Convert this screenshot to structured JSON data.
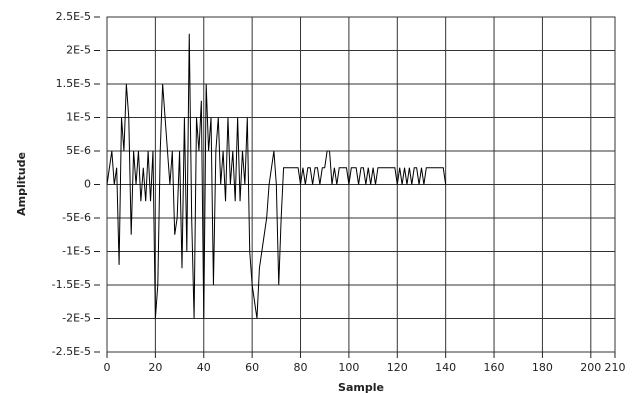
{
  "chart_data": {
    "type": "line",
    "xlabel": "Sample",
    "ylabel": "Amplitude",
    "xlim": [
      0,
      210
    ],
    "xticks": [
      0,
      20,
      40,
      60,
      80,
      100,
      120,
      140,
      160,
      180,
      200,
      210
    ],
    "ylim": [
      -2.5e-05,
      2.5e-05
    ],
    "yticks": [
      {
        "value": -2.5e-05,
        "label": "-2.5E-5"
      },
      {
        "value": -2e-05,
        "label": "-2E-5"
      },
      {
        "value": -1.5e-05,
        "label": "-1.5E-5"
      },
      {
        "value": -1e-05,
        "label": "-1E-5"
      },
      {
        "value": -5e-06,
        "label": "-5E-6"
      },
      0,
      {
        "value": 5e-06,
        "label": "5E-6"
      },
      {
        "value": 1e-05,
        "label": "1E-5"
      },
      {
        "value": 1.5e-05,
        "label": "1.5E-5"
      },
      {
        "value": 2e-05,
        "label": "2E-5"
      },
      {
        "value": 2.5e-05,
        "label": "2.5E-5"
      }
    ],
    "grid": true,
    "color": "#000000",
    "values": [
      0,
      2.5e-06,
      5e-06,
      0,
      2.5e-06,
      -1.2e-05,
      1e-05,
      5e-06,
      1.5e-05,
      1e-05,
      -7.5e-06,
      5e-06,
      0,
      5e-06,
      -2.5e-06,
      2.5e-06,
      -2.5e-06,
      5e-06,
      -2.5e-06,
      5e-06,
      -2e-05,
      -1.5e-05,
      5e-06,
      1.5e-05,
      1e-05,
      5e-06,
      0,
      5e-06,
      -7.5e-06,
      -5e-06,
      5e-06,
      -1.25e-05,
      1e-05,
      -1e-05,
      2.25e-05,
      -5e-06,
      -2e-05,
      1e-05,
      5e-06,
      1.25e-05,
      -2e-05,
      1.5e-05,
      5e-06,
      1e-05,
      -1.5e-05,
      5e-06,
      1e-05,
      0,
      5e-06,
      -2.5e-06,
      1e-05,
      0,
      5e-06,
      -2.5e-06,
      1e-05,
      -2.5e-06,
      5e-06,
      0,
      1e-05,
      -1e-05,
      -1.5e-05,
      -1.75e-05,
      -2e-05,
      -1.25e-05,
      -1e-05,
      -7.5e-06,
      -5e-06,
      0,
      2.5e-06,
      5e-06,
      0,
      -1.5e-05,
      -5e-06,
      2.5e-06,
      2.5e-06,
      2.5e-06,
      2.5e-06,
      2.5e-06,
      2.5e-06,
      2.5e-06,
      0,
      2.5e-06,
      0,
      2.5e-06,
      2.5e-06,
      0,
      2.5e-06,
      2.5e-06,
      0,
      2.5e-06,
      2.5e-06,
      5e-06,
      5e-06,
      0,
      2.5e-06,
      0,
      2.5e-06,
      2.5e-06,
      2.5e-06,
      2.5e-06,
      0,
      2.5e-06,
      2.5e-06,
      2.5e-06,
      0,
      2.5e-06,
      2.5e-06,
      0,
      2.5e-06,
      0,
      2.5e-06,
      0,
      2.5e-06,
      2.5e-06,
      2.5e-06,
      2.5e-06,
      2.5e-06,
      2.5e-06,
      2.5e-06,
      2.5e-06,
      0,
      2.5e-06,
      0,
      2.5e-06,
      0,
      2.5e-06,
      0,
      2.5e-06,
      2.5e-06,
      0,
      2.5e-06,
      0,
      2.5e-06,
      2.5e-06,
      2.5e-06,
      2.5e-06,
      2.5e-06,
      2.5e-06,
      2.5e-06,
      2.5e-06,
      0
    ]
  }
}
